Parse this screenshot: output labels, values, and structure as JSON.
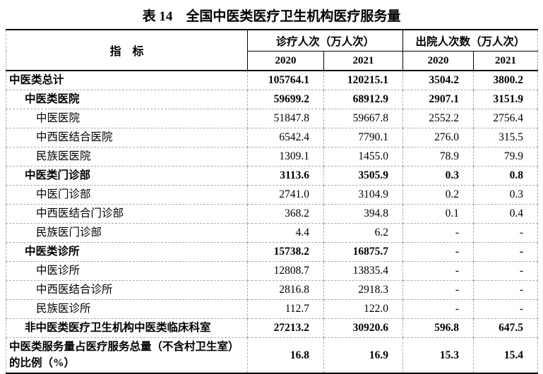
{
  "title": "表 14　全国中医类医疗卫生机构医疗服务量",
  "table": {
    "indicator_header": "指　标",
    "group_visits": "诊疗人次（万人次）",
    "group_discharges": "出院人次数（万人次）",
    "years": [
      "2020",
      "2021",
      "2020",
      "2021"
    ],
    "rows": [
      {
        "label": "中医类总计",
        "values": [
          "105764.1",
          "120215.1",
          "3504.2",
          "3800.2"
        ]
      },
      {
        "label": "中医类医院",
        "values": [
          "59699.2",
          "68912.9",
          "2907.1",
          "3151.9"
        ]
      },
      {
        "label": "中医医院",
        "values": [
          "51847.8",
          "59667.8",
          "2552.2",
          "2756.4"
        ]
      },
      {
        "label": "中西医结合医院",
        "values": [
          "6542.4",
          "7790.1",
          "276.0",
          "315.5"
        ]
      },
      {
        "label": "民族医医院",
        "values": [
          "1309.1",
          "1455.0",
          "78.9",
          "79.9"
        ]
      },
      {
        "label": "中医类门诊部",
        "values": [
          "3113.6",
          "3505.9",
          "0.3",
          "0.8"
        ]
      },
      {
        "label": "中医门诊部",
        "values": [
          "2741.0",
          "3104.9",
          "0.2",
          "0.3"
        ]
      },
      {
        "label": "中西医结合门诊部",
        "values": [
          "368.2",
          "394.8",
          "0.1",
          "0.4"
        ]
      },
      {
        "label": "民族医门诊部",
        "values": [
          "4.4",
          "6.2",
          "-",
          "-"
        ]
      },
      {
        "label": "中医类诊所",
        "values": [
          "15738.2",
          "16875.7",
          "-",
          "-"
        ]
      },
      {
        "label": "中医诊所",
        "values": [
          "12808.7",
          "13835.4",
          "-",
          "-"
        ]
      },
      {
        "label": "中西医结合诊所",
        "values": [
          "2816.8",
          "2918.3",
          "-",
          "-"
        ]
      },
      {
        "label": "民族医诊所",
        "values": [
          "112.7",
          "122.0",
          "-",
          "-"
        ]
      },
      {
        "label": "非中医类医疗卫生机构中医类临床科室",
        "values": [
          "27213.2",
          "30920.6",
          "596.8",
          "647.5"
        ]
      },
      {
        "label": "中医类服务量占医疗服务总量（不含村卫生室）的比例（%）",
        "values": [
          "16.8",
          "16.9",
          "15.3",
          "15.4"
        ]
      }
    ]
  }
}
